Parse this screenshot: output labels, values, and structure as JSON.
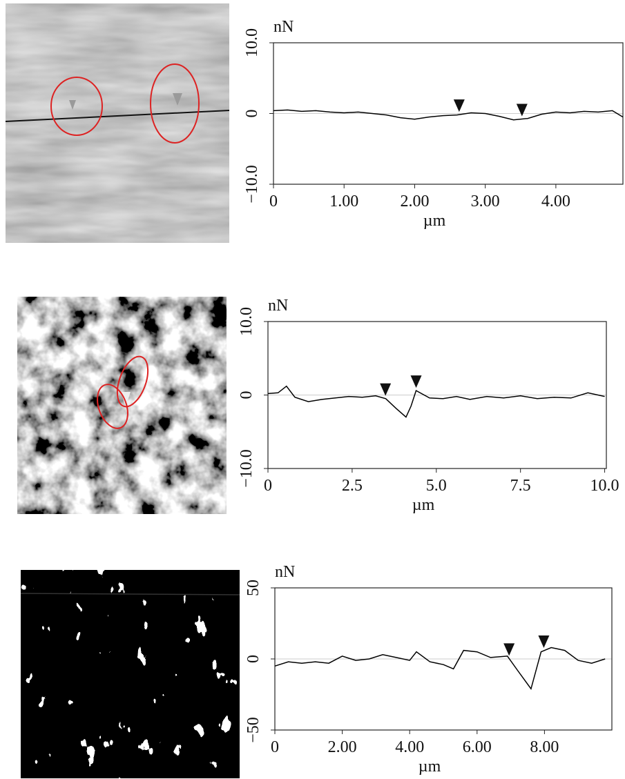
{
  "chart_data": [
    {
      "type": "line",
      "ylabel": "nN",
      "xlabel": "µm",
      "color": "#000000",
      "x": [
        0,
        0.2,
        0.4,
        0.6,
        0.8,
        1.0,
        1.2,
        1.4,
        1.6,
        1.8,
        2.0,
        2.2,
        2.4,
        2.6,
        2.8,
        3.0,
        3.2,
        3.4,
        3.6,
        3.8,
        4.0,
        4.2,
        4.4,
        4.6,
        4.8,
        4.95
      ],
      "values": [
        0.4,
        0.5,
        0.3,
        0.4,
        0.2,
        0.1,
        0.2,
        0.0,
        -0.2,
        -0.6,
        -0.8,
        -0.5,
        -0.3,
        -0.2,
        0.1,
        0.0,
        -0.4,
        -0.9,
        -0.7,
        -0.1,
        0.2,
        0.1,
        0.3,
        0.2,
        0.4,
        -0.5
      ],
      "markers": [
        2.63,
        3.52
      ],
      "xlim": [
        0,
        4.95
      ],
      "ylim": [
        -10,
        10
      ],
      "xticks": [
        0,
        {
          "value": 1,
          "label": "1.00"
        },
        {
          "value": 2,
          "label": "2.00"
        },
        {
          "value": 3,
          "label": "3.00"
        },
        {
          "value": 4,
          "label": "4.00"
        }
      ],
      "yticks": [
        {
          "value": -10,
          "label": "−10.0"
        },
        0,
        {
          "value": 10,
          "label": "10.0"
        }
      ]
    },
    {
      "type": "line",
      "ylabel": "nN",
      "xlabel": "µm",
      "color": "#000000",
      "x": [
        0,
        0.3,
        0.55,
        0.8,
        1.2,
        1.6,
        2.0,
        2.4,
        2.8,
        3.2,
        3.5,
        3.8,
        4.1,
        4.25,
        4.4,
        4.8,
        5.2,
        5.6,
        6.0,
        6.5,
        7.0,
        7.5,
        8.0,
        8.5,
        9.0,
        9.5,
        10.0
      ],
      "values": [
        0.2,
        0.3,
        1.2,
        -0.3,
        -0.9,
        -0.6,
        -0.4,
        -0.2,
        -0.3,
        -0.1,
        -0.5,
        -1.8,
        -3.0,
        -1.5,
        0.6,
        -0.4,
        -0.5,
        -0.2,
        -0.6,
        -0.2,
        -0.4,
        -0.1,
        -0.5,
        -0.3,
        -0.4,
        0.3,
        -0.2
      ],
      "markers": [
        3.49,
        4.4
      ],
      "xlim": [
        0,
        10.05
      ],
      "ylim": [
        -10,
        10
      ],
      "xticks": [
        0,
        2.5,
        {
          "value": 5,
          "label": "5.0"
        },
        7.5,
        {
          "value": 10,
          "label": "10.0"
        }
      ],
      "yticks": [
        {
          "value": -10,
          "label": "−10.0"
        },
        0,
        {
          "value": 10,
          "label": "10.0"
        }
      ]
    },
    {
      "type": "line",
      "ylabel": "nN",
      "xlabel": "µm",
      "color": "#000000",
      "x": [
        0,
        0.4,
        0.8,
        1.2,
        1.6,
        2.0,
        2.4,
        2.8,
        3.2,
        3.6,
        4.0,
        4.2,
        4.6,
        5.0,
        5.3,
        5.6,
        6.0,
        6.4,
        6.9,
        7.2,
        7.6,
        7.9,
        8.2,
        8.6,
        9.0,
        9.4,
        9.8
      ],
      "values": [
        -5,
        -2,
        -3,
        -2,
        -3,
        2,
        -1,
        0,
        3,
        1,
        -1,
        5,
        -2,
        -4,
        -7,
        6,
        5,
        1,
        2,
        -8,
        -21,
        5,
        8,
        6,
        -1,
        -3,
        0
      ],
      "markers": [
        6.95,
        7.98
      ],
      "xlim": [
        0,
        10
      ],
      "ylim": [
        -50,
        50
      ],
      "xticks": [
        0,
        {
          "value": 2,
          "label": "2.00"
        },
        {
          "value": 4,
          "label": "4.00"
        },
        {
          "value": 6,
          "label": "6.00"
        },
        {
          "value": 8,
          "label": "8.00"
        }
      ],
      "yticks": [
        {
          "value": -50,
          "label": "−50"
        },
        0,
        50
      ]
    }
  ]
}
